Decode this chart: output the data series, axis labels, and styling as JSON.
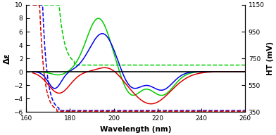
{
  "xlim": [
    160,
    260
  ],
  "ylim_left": [
    -6,
    10
  ],
  "ylim_right": [
    350,
    1150
  ],
  "xlabel": "Wavelength (nm)",
  "ylabel_left": "Δε",
  "ylabel_right": "HT (mV)",
  "yticks_left": [
    -6,
    -4,
    -2,
    0,
    2,
    4,
    6,
    8,
    10
  ],
  "yticks_right": [
    350,
    550,
    750,
    950,
    1150
  ],
  "xticks": [
    160,
    180,
    200,
    220,
    240,
    260
  ],
  "colors": {
    "green": "#00cc00",
    "blue": "#0000ee",
    "red": "#dd0000"
  },
  "background": "#ffffff",
  "lw": 1.1
}
